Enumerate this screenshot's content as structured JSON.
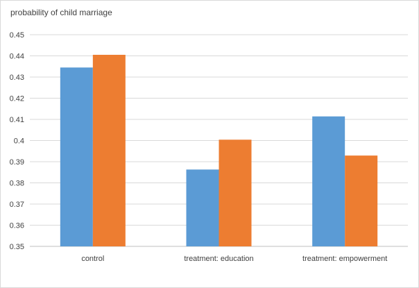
{
  "chart_data": {
    "type": "bar",
    "title": "probability of child marriage",
    "xlabel": "",
    "ylabel": "",
    "categories": [
      "control",
      "treatment: education",
      "treatment: empowerment"
    ],
    "series": [
      {
        "values": [
          0.4345,
          0.3863,
          0.4114
        ],
        "color": "#5b9bd5"
      },
      {
        "values": [
          0.4405,
          0.4004,
          0.3929
        ],
        "color": "#ed7d31"
      }
    ],
    "ylim": [
      0.35,
      0.45
    ],
    "yticks": [
      "0.35",
      "0.36",
      "0.37",
      "0.38",
      "0.39",
      "0.4",
      "0.41",
      "0.42",
      "0.43",
      "0.44",
      "0.45"
    ],
    "grid": true,
    "legend": "none"
  }
}
